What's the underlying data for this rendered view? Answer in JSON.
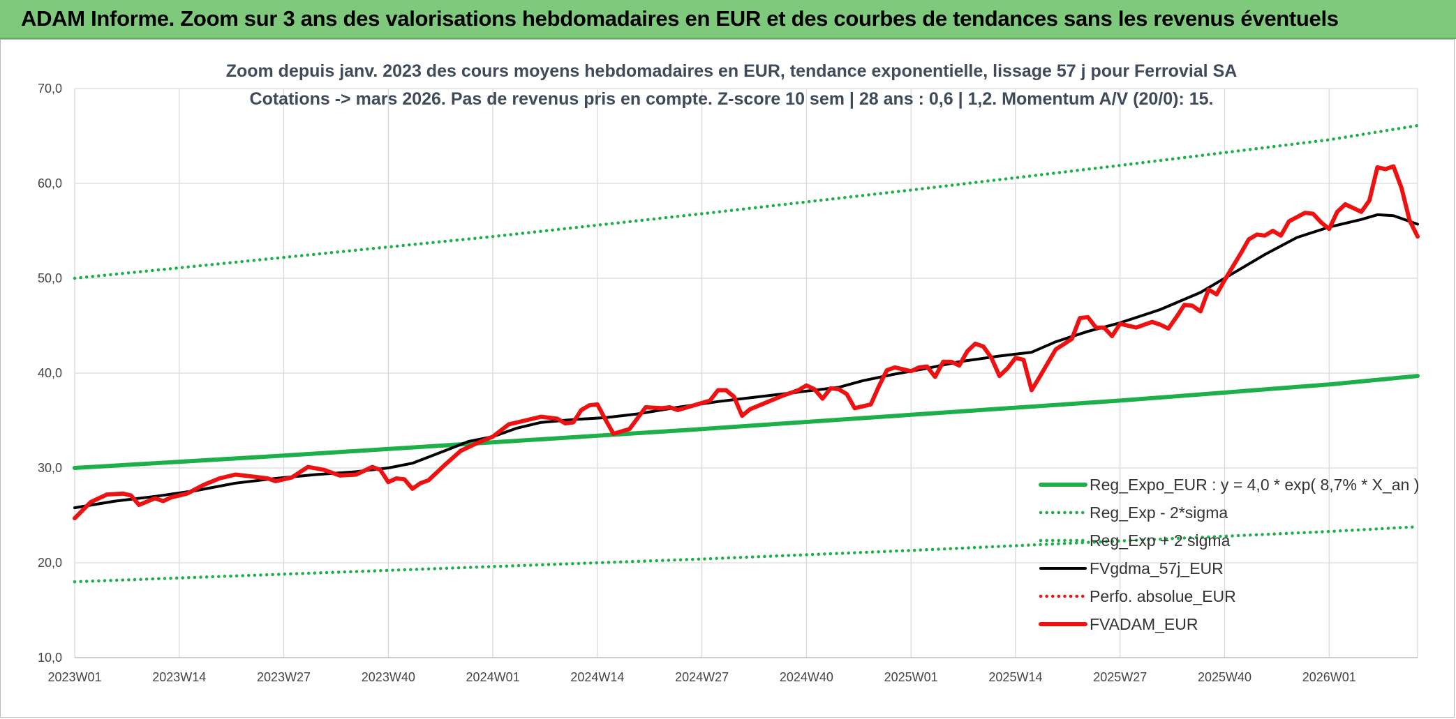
{
  "banner": {
    "title": "ADAM Informe. Zoom sur 3 ans des valorisations hebdomadaires en EUR et des courbes de tendances sans les revenus éventuels"
  },
  "colors": {
    "banner_bg": "#7ec97c",
    "reg_expo": "#1db04a",
    "gdma": "#000000",
    "fvadam": "#ee1111",
    "perfo": "#ee1111",
    "grid": "#d9d9d9"
  },
  "chart_data": {
    "type": "line",
    "title": "Zoom depuis janv. 2023 des cours moyens hebdomadaires en EUR, tendance exponentielle, lissage 57 j pour Ferrovial SA",
    "subtitle": "Cotations -> mars 2026. Pas de revenus pris en compte. Z-score 10 sem | 28 ans : 0,6 | 1,2. Momentum A/V (20/0): 15.",
    "xlabel": "",
    "ylabel": "",
    "ylim": [
      10,
      70
    ],
    "yticks": [
      "10,0",
      "20,0",
      "30,0",
      "40,0",
      "50,0",
      "60,0",
      "70,0"
    ],
    "x_range_weeks": [
      0,
      167
    ],
    "xticks": [
      {
        "w": 0,
        "label": "2023W01"
      },
      {
        "w": 13,
        "label": "2023W14"
      },
      {
        "w": 26,
        "label": "2023W27"
      },
      {
        "w": 39,
        "label": "2023W40"
      },
      {
        "w": 52,
        "label": "2024W01"
      },
      {
        "w": 65,
        "label": "2024W14"
      },
      {
        "w": 78,
        "label": "2024W27"
      },
      {
        "w": 91,
        "label": "2024W40"
      },
      {
        "w": 104,
        "label": "2025W01"
      },
      {
        "w": 117,
        "label": "2025W14"
      },
      {
        "w": 130,
        "label": "2025W27"
      },
      {
        "w": 143,
        "label": "2025W40"
      },
      {
        "w": 156,
        "label": "2026W01"
      }
    ],
    "grid": true,
    "legend_position": "bottom-right",
    "series": [
      {
        "name": "Reg_Expo_EUR : y = 4,0 * exp( 8,7% *  X_an )",
        "style": "solid-thick",
        "color": "#1db04a",
        "points": [
          [
            0,
            30.0
          ],
          [
            26,
            31.3
          ],
          [
            52,
            32.7
          ],
          [
            78,
            34.1
          ],
          [
            104,
            35.6
          ],
          [
            130,
            37.1
          ],
          [
            156,
            38.8
          ],
          [
            167,
            39.7
          ]
        ]
      },
      {
        "name": "Reg_Exp - 2*sigma",
        "style": "dotted",
        "color": "#1db04a",
        "points": [
          [
            0,
            18.0
          ],
          [
            26,
            18.8
          ],
          [
            52,
            19.6
          ],
          [
            78,
            20.4
          ],
          [
            104,
            21.3
          ],
          [
            130,
            22.3
          ],
          [
            156,
            23.3
          ],
          [
            167,
            23.8
          ]
        ]
      },
      {
        "name": "Reg_Exp + 2 sigma",
        "style": "dotted",
        "color": "#1db04a",
        "points": [
          [
            0,
            50.0
          ],
          [
            26,
            52.2
          ],
          [
            52,
            54.4
          ],
          [
            78,
            56.8
          ],
          [
            104,
            59.3
          ],
          [
            130,
            61.9
          ],
          [
            156,
            64.6
          ],
          [
            167,
            66.1
          ]
        ]
      },
      {
        "name": "FVgdma_57j_EUR",
        "style": "solid",
        "color": "#000000",
        "points": [
          [
            0,
            25.8
          ],
          [
            5,
            26.5
          ],
          [
            10,
            27.0
          ],
          [
            15,
            27.6
          ],
          [
            20,
            28.4
          ],
          [
            25,
            28.9
          ],
          [
            30,
            29.3
          ],
          [
            35,
            29.6
          ],
          [
            39,
            30.0
          ],
          [
            42,
            30.5
          ],
          [
            46,
            31.8
          ],
          [
            49,
            32.8
          ],
          [
            52,
            33.3
          ],
          [
            55,
            34.2
          ],
          [
            58,
            34.8
          ],
          [
            62,
            35.1
          ],
          [
            66,
            35.3
          ],
          [
            70,
            35.7
          ],
          [
            75,
            36.4
          ],
          [
            80,
            37.0
          ],
          [
            85,
            37.5
          ],
          [
            90,
            38.0
          ],
          [
            95,
            38.5
          ],
          [
            98,
            39.2
          ],
          [
            102,
            39.9
          ],
          [
            106,
            40.5
          ],
          [
            110,
            41.2
          ],
          [
            115,
            41.8
          ],
          [
            119,
            42.2
          ],
          [
            122,
            43.3
          ],
          [
            126,
            44.4
          ],
          [
            130,
            45.3
          ],
          [
            135,
            46.7
          ],
          [
            140,
            48.5
          ],
          [
            144,
            50.5
          ],
          [
            148,
            52.5
          ],
          [
            152,
            54.3
          ],
          [
            156,
            55.4
          ],
          [
            160,
            56.2
          ],
          [
            162,
            56.7
          ],
          [
            164,
            56.6
          ],
          [
            167,
            55.7
          ]
        ]
      },
      {
        "name": "Perfo. absolue_EUR",
        "style": "dotted",
        "color": "#ee1111",
        "points": []
      },
      {
        "name": "FVADAM_EUR",
        "style": "solid-thick",
        "color": "#ee1111",
        "points": [
          [
            0,
            24.7
          ],
          [
            2,
            26.4
          ],
          [
            4,
            27.2
          ],
          [
            6,
            27.3
          ],
          [
            7,
            27.1
          ],
          [
            8,
            26.1
          ],
          [
            10,
            26.8
          ],
          [
            11,
            26.5
          ],
          [
            12,
            26.9
          ],
          [
            14,
            27.3
          ],
          [
            16,
            28.2
          ],
          [
            18,
            28.9
          ],
          [
            20,
            29.3
          ],
          [
            22,
            29.1
          ],
          [
            24,
            28.9
          ],
          [
            25,
            28.6
          ],
          [
            27,
            29.0
          ],
          [
            29,
            30.1
          ],
          [
            31,
            29.8
          ],
          [
            33,
            29.2
          ],
          [
            35,
            29.3
          ],
          [
            37,
            30.1
          ],
          [
            38,
            29.8
          ],
          [
            39,
            28.5
          ],
          [
            40,
            28.9
          ],
          [
            41,
            28.8
          ],
          [
            42,
            27.8
          ],
          [
            43,
            28.4
          ],
          [
            44,
            28.7
          ],
          [
            46,
            30.3
          ],
          [
            48,
            31.8
          ],
          [
            50,
            32.6
          ],
          [
            52,
            33.3
          ],
          [
            54,
            34.6
          ],
          [
            56,
            35.0
          ],
          [
            58,
            35.4
          ],
          [
            60,
            35.2
          ],
          [
            61,
            34.7
          ],
          [
            62,
            34.8
          ],
          [
            63,
            36.1
          ],
          [
            64,
            36.6
          ],
          [
            65,
            36.7
          ],
          [
            66,
            35.1
          ],
          [
            67,
            33.6
          ],
          [
            69,
            34.1
          ],
          [
            71,
            36.4
          ],
          [
            73,
            36.3
          ],
          [
            74,
            36.4
          ],
          [
            75,
            36.1
          ],
          [
            77,
            36.6
          ],
          [
            79,
            37.1
          ],
          [
            80,
            38.2
          ],
          [
            81,
            38.2
          ],
          [
            82,
            37.5
          ],
          [
            83,
            35.5
          ],
          [
            84,
            36.2
          ],
          [
            86,
            36.9
          ],
          [
            88,
            37.6
          ],
          [
            90,
            38.2
          ],
          [
            91,
            38.7
          ],
          [
            92,
            38.3
          ],
          [
            93,
            37.3
          ],
          [
            94,
            38.4
          ],
          [
            95,
            38.3
          ],
          [
            96,
            37.8
          ],
          [
            97,
            36.3
          ],
          [
            99,
            36.7
          ],
          [
            100,
            38.6
          ],
          [
            101,
            40.3
          ],
          [
            102,
            40.6
          ],
          [
            104,
            40.2
          ],
          [
            105,
            40.6
          ],
          [
            106,
            40.7
          ],
          [
            107,
            39.6
          ],
          [
            108,
            41.2
          ],
          [
            109,
            41.2
          ],
          [
            110,
            40.8
          ],
          [
            111,
            42.3
          ],
          [
            112,
            43.1
          ],
          [
            113,
            42.8
          ],
          [
            114,
            41.6
          ],
          [
            115,
            39.7
          ],
          [
            116,
            40.5
          ],
          [
            117,
            41.6
          ],
          [
            118,
            41.4
          ],
          [
            119,
            38.2
          ],
          [
            120,
            39.6
          ],
          [
            122,
            42.5
          ],
          [
            124,
            43.6
          ],
          [
            125,
            45.8
          ],
          [
            126,
            45.9
          ],
          [
            127,
            44.8
          ],
          [
            128,
            44.8
          ],
          [
            129,
            43.9
          ],
          [
            130,
            45.2
          ],
          [
            131,
            45.0
          ],
          [
            132,
            44.8
          ],
          [
            134,
            45.4
          ],
          [
            135,
            45.1
          ],
          [
            136,
            44.7
          ],
          [
            137,
            45.9
          ],
          [
            138,
            47.2
          ],
          [
            139,
            47.1
          ],
          [
            140,
            46.5
          ],
          [
            141,
            48.8
          ],
          [
            142,
            48.3
          ],
          [
            143,
            49.8
          ],
          [
            145,
            52.6
          ],
          [
            146,
            54.1
          ],
          [
            147,
            54.6
          ],
          [
            148,
            54.5
          ],
          [
            149,
            55.0
          ],
          [
            150,
            54.5
          ],
          [
            151,
            56.0
          ],
          [
            153,
            56.9
          ],
          [
            154,
            56.8
          ],
          [
            155,
            55.9
          ],
          [
            156,
            55.2
          ],
          [
            157,
            57.0
          ],
          [
            158,
            57.8
          ],
          [
            160,
            57.0
          ],
          [
            161,
            58.2
          ],
          [
            162,
            61.7
          ],
          [
            163,
            61.5
          ],
          [
            164,
            61.8
          ],
          [
            165,
            59.5
          ],
          [
            166,
            56.1
          ],
          [
            167,
            54.4
          ]
        ]
      }
    ]
  }
}
